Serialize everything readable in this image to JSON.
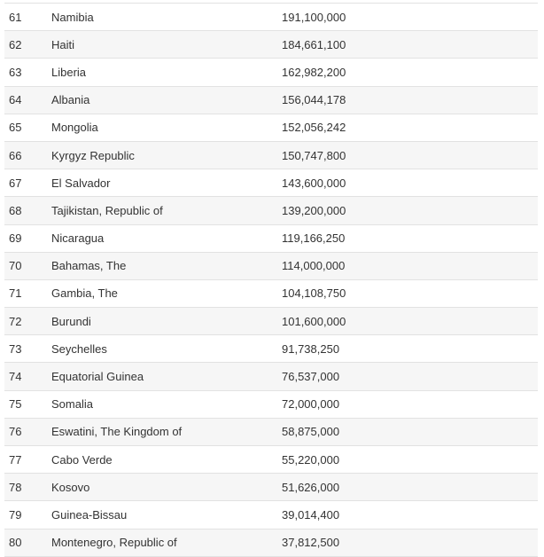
{
  "table": {
    "rows": [
      {
        "rank": "61",
        "country": "Namibia",
        "value": "191,100,000"
      },
      {
        "rank": "62",
        "country": "Haiti",
        "value": "184,661,100"
      },
      {
        "rank": "63",
        "country": "Liberia",
        "value": "162,982,200"
      },
      {
        "rank": "64",
        "country": "Albania",
        "value": "156,044,178"
      },
      {
        "rank": "65",
        "country": "Mongolia",
        "value": "152,056,242"
      },
      {
        "rank": "66",
        "country": "Kyrgyz Republic",
        "value": "150,747,800"
      },
      {
        "rank": "67",
        "country": "El Salvador",
        "value": "143,600,000"
      },
      {
        "rank": "68",
        "country": "Tajikistan, Republic of",
        "value": "139,200,000"
      },
      {
        "rank": "69",
        "country": "Nicaragua",
        "value": "119,166,250"
      },
      {
        "rank": "70",
        "country": "Bahamas, The",
        "value": "114,000,000"
      },
      {
        "rank": "71",
        "country": "Gambia, The",
        "value": "104,108,750"
      },
      {
        "rank": "72",
        "country": "Burundi",
        "value": "101,600,000"
      },
      {
        "rank": "73",
        "country": "Seychelles",
        "value": "91,738,250"
      },
      {
        "rank": "74",
        "country": "Equatorial Guinea",
        "value": "76,537,000"
      },
      {
        "rank": "75",
        "country": "Somalia",
        "value": "72,000,000"
      },
      {
        "rank": "76",
        "country": "Eswatini, The Kingdom of",
        "value": "58,875,000"
      },
      {
        "rank": "77",
        "country": "Cabo Verde",
        "value": "55,220,000"
      },
      {
        "rank": "78",
        "country": "Kosovo",
        "value": "51,626,000"
      },
      {
        "rank": "79",
        "country": "Guinea-Bissau",
        "value": "39,014,400"
      },
      {
        "rank": "80",
        "country": "Montenegro, Republic of",
        "value": "37,812,500"
      }
    ]
  }
}
